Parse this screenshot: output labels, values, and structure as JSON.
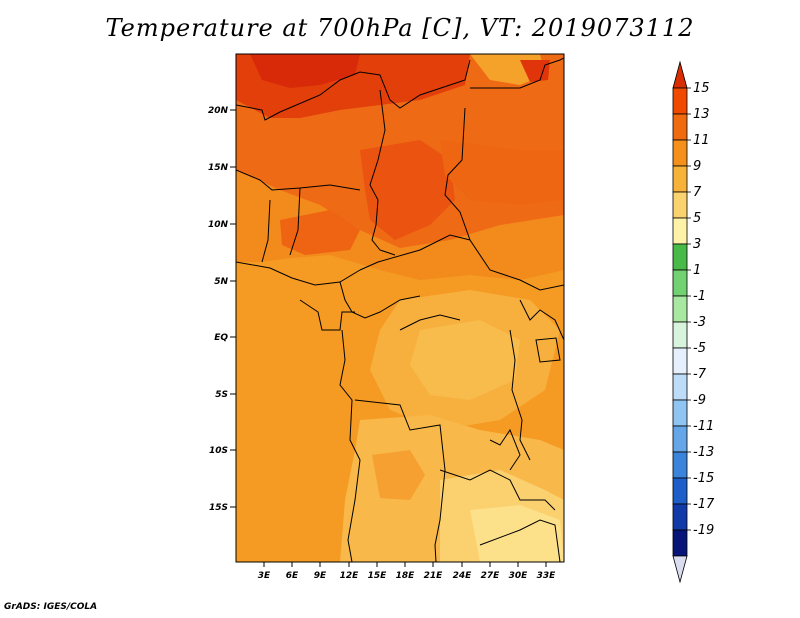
{
  "title": "Temperature at 700hPa [C], VT: 2019073112",
  "credit": "GrADS: IGES/COLA",
  "map": {
    "lat_labels": [
      "20N",
      "15N",
      "10N",
      "5N",
      "EQ",
      "5S",
      "10S",
      "15S"
    ],
    "lon_labels": [
      "3E",
      "6E",
      "9E",
      "12E",
      "15E",
      "18E",
      "21E",
      "24E",
      "27E",
      "30E",
      "33E"
    ]
  },
  "colorbar": {
    "labels": [
      "15",
      "13",
      "11",
      "9",
      "7",
      "5",
      "3",
      "1",
      "-1",
      "-3",
      "-5",
      "-7",
      "-9",
      "-11",
      "-13",
      "-15",
      "-17",
      "-19"
    ],
    "colors": [
      "#d72d00",
      "#ef4a00",
      "#f06a10",
      "#f5901a",
      "#f7b23a",
      "#fbd36e",
      "#fdf2a8",
      "#48ba48",
      "#72d272",
      "#a8e8a0",
      "#d8f4dc",
      "#e6f0fc",
      "#bcdcf8",
      "#90c4f2",
      "#64a6e8",
      "#3a84dc",
      "#1e5ec8",
      "#103aa8",
      "#071478",
      "#dcdcf0"
    ]
  },
  "colors": {
    "warm_north": "#ef5a12",
    "hot_core": "#dd2e08",
    "mid": "#f59220",
    "ocean": "#f39c23",
    "cool_south": "#fbd070"
  }
}
